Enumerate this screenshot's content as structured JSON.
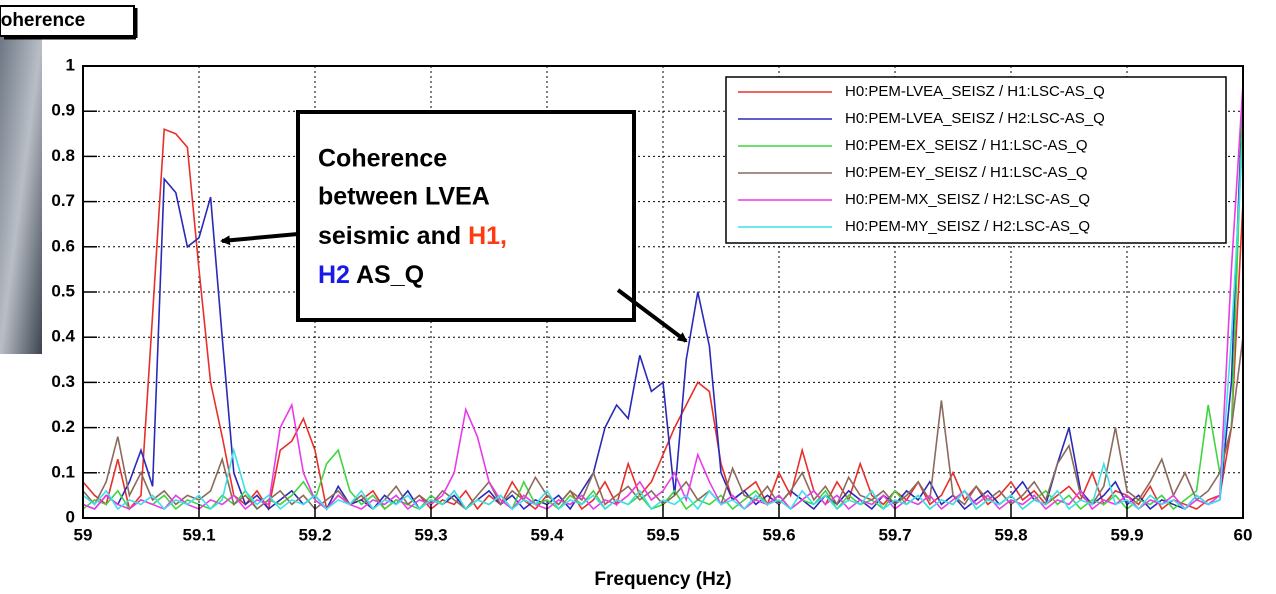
{
  "chart_data": {
    "type": "line",
    "header_box": "Coherence",
    "xlabel": "Frequency (Hz)",
    "annotation": {
      "line1": "Coherence",
      "line2": "between LVEA",
      "line3": "seismic and ",
      "line3_h1": "H1,",
      "line4_h2": "H2",
      "line4": " AS_Q"
    },
    "xlim": [
      59,
      60
    ],
    "ylim": [
      0,
      1
    ],
    "xticks": [
      59,
      59.1,
      59.2,
      59.3,
      59.4,
      59.5,
      59.6,
      59.7,
      59.8,
      59.9,
      60
    ],
    "yticks": [
      0,
      0.1,
      0.2,
      0.3,
      0.4,
      0.5,
      0.6,
      0.7,
      0.8,
      0.9,
      1
    ],
    "grid": true,
    "legend": "upper right",
    "x": [
      59,
      59.01,
      59.02,
      59.03,
      59.04,
      59.05,
      59.06,
      59.07,
      59.08,
      59.09,
      59.1,
      59.11,
      59.12,
      59.13,
      59.14,
      59.15,
      59.16,
      59.17,
      59.18,
      59.19,
      59.2,
      59.21,
      59.22,
      59.23,
      59.24,
      59.25,
      59.26,
      59.27,
      59.28,
      59.29,
      59.3,
      59.31,
      59.32,
      59.33,
      59.34,
      59.35,
      59.36,
      59.37,
      59.38,
      59.39,
      59.4,
      59.41,
      59.42,
      59.43,
      59.44,
      59.45,
      59.46,
      59.47,
      59.48,
      59.49,
      59.5,
      59.51,
      59.52,
      59.53,
      59.54,
      59.55,
      59.56,
      59.57,
      59.58,
      59.59,
      59.6,
      59.61,
      59.62,
      59.63,
      59.64,
      59.65,
      59.66,
      59.67,
      59.68,
      59.69,
      59.7,
      59.71,
      59.72,
      59.73,
      59.74,
      59.75,
      59.76,
      59.77,
      59.78,
      59.79,
      59.8,
      59.81,
      59.82,
      59.83,
      59.84,
      59.85,
      59.86,
      59.87,
      59.88,
      59.89,
      59.9,
      59.91,
      59.92,
      59.93,
      59.94,
      59.95,
      59.96,
      59.97,
      59.98,
      59.99,
      60
    ],
    "series": [
      {
        "name": "H0:PEM-LVEA_SEISZ / H1:LSC-AS_Q",
        "color": "#e8302a",
        "values": [
          0.08,
          0.05,
          0.03,
          0.13,
          0.02,
          0.05,
          0.45,
          0.86,
          0.85,
          0.82,
          0.55,
          0.3,
          0.18,
          0.05,
          0.03,
          0.06,
          0.02,
          0.15,
          0.17,
          0.22,
          0.15,
          0.02,
          0.05,
          0.03,
          0.04,
          0.06,
          0.02,
          0.04,
          0.03,
          0.05,
          0.02,
          0.04,
          0.03,
          0.06,
          0.02,
          0.05,
          0.03,
          0.08,
          0.04,
          0.02,
          0.05,
          0.03,
          0.06,
          0.02,
          0.04,
          0.08,
          0.03,
          0.12,
          0.05,
          0.08,
          0.14,
          0.2,
          0.25,
          0.3,
          0.28,
          0.12,
          0.04,
          0.06,
          0.08,
          0.03,
          0.1,
          0.05,
          0.15,
          0.06,
          0.03,
          0.08,
          0.04,
          0.12,
          0.05,
          0.03,
          0.06,
          0.04,
          0.08,
          0.03,
          0.05,
          0.1,
          0.04,
          0.07,
          0.03,
          0.05,
          0.08,
          0.04,
          0.06,
          0.03,
          0.05,
          0.07,
          0.04,
          0.1,
          0.03,
          0.06,
          0.05,
          0.03,
          0.07,
          0.02,
          0.04,
          0.03,
          0.02,
          0.04,
          0.05,
          0.2,
          0.7
        ]
      },
      {
        "name": "H0:PEM-LVEA_SEISZ / H2:LSC-AS_Q",
        "color": "#2a2ab8",
        "values": [
          0.03,
          0.02,
          0.05,
          0.03,
          0.08,
          0.15,
          0.07,
          0.75,
          0.72,
          0.6,
          0.62,
          0.71,
          0.4,
          0.1,
          0.03,
          0.05,
          0.02,
          0.04,
          0.06,
          0.03,
          0.05,
          0.02,
          0.07,
          0.03,
          0.04,
          0.02,
          0.05,
          0.03,
          0.06,
          0.02,
          0.04,
          0.03,
          0.05,
          0.02,
          0.04,
          0.06,
          0.03,
          0.05,
          0.02,
          0.04,
          0.03,
          0.05,
          0.02,
          0.06,
          0.1,
          0.2,
          0.25,
          0.22,
          0.36,
          0.28,
          0.3,
          0.05,
          0.35,
          0.5,
          0.38,
          0.1,
          0.04,
          0.06,
          0.03,
          0.05,
          0.03,
          0.06,
          0.04,
          0.02,
          0.05,
          0.03,
          0.06,
          0.04,
          0.02,
          0.05,
          0.03,
          0.06,
          0.04,
          0.08,
          0.03,
          0.05,
          0.02,
          0.04,
          0.06,
          0.03,
          0.05,
          0.08,
          0.04,
          0.03,
          0.12,
          0.2,
          0.06,
          0.03,
          0.05,
          0.08,
          0.03,
          0.05,
          0.02,
          0.04,
          0.03,
          0.02,
          0.05,
          0.03,
          0.04,
          0.3,
          0.95
        ]
      },
      {
        "name": "H0:PEM-EX_SEISZ / H1:LSC-AS_Q",
        "color": "#3ed63e",
        "values": [
          0.02,
          0.04,
          0.03,
          0.06,
          0.02,
          0.04,
          0.03,
          0.05,
          0.02,
          0.04,
          0.03,
          0.02,
          0.05,
          0.03,
          0.06,
          0.02,
          0.04,
          0.03,
          0.05,
          0.08,
          0.04,
          0.12,
          0.15,
          0.06,
          0.03,
          0.05,
          0.02,
          0.04,
          0.03,
          0.02,
          0.05,
          0.03,
          0.06,
          0.02,
          0.04,
          0.03,
          0.05,
          0.02,
          0.08,
          0.03,
          0.04,
          0.02,
          0.05,
          0.03,
          0.06,
          0.02,
          0.04,
          0.03,
          0.05,
          0.02,
          0.03,
          0.06,
          0.02,
          0.04,
          0.03,
          0.05,
          0.02,
          0.04,
          0.06,
          0.03,
          0.05,
          0.02,
          0.04,
          0.03,
          0.06,
          0.02,
          0.05,
          0.03,
          0.04,
          0.02,
          0.06,
          0.03,
          0.05,
          0.02,
          0.04,
          0.03,
          0.06,
          0.02,
          0.04,
          0.03,
          0.05,
          0.02,
          0.04,
          0.06,
          0.03,
          0.05,
          0.02,
          0.04,
          0.03,
          0.05,
          0.02,
          0.04,
          0.03,
          0.05,
          0.02,
          0.04,
          0.06,
          0.25,
          0.1,
          0.2,
          0.93
        ]
      },
      {
        "name": "H0:PEM-EY_SEISZ / H1:LSC-AS_Q",
        "color": "#8c6a5c",
        "values": [
          0.06,
          0.03,
          0.08,
          0.18,
          0.05,
          0.1,
          0.04,
          0.06,
          0.03,
          0.05,
          0.04,
          0.06,
          0.13,
          0.03,
          0.05,
          0.02,
          0.04,
          0.06,
          0.03,
          0.05,
          0.02,
          0.04,
          0.06,
          0.03,
          0.05,
          0.02,
          0.04,
          0.07,
          0.03,
          0.05,
          0.03,
          0.06,
          0.04,
          0.02,
          0.05,
          0.08,
          0.03,
          0.06,
          0.04,
          0.09,
          0.05,
          0.03,
          0.06,
          0.04,
          0.1,
          0.03,
          0.05,
          0.07,
          0.04,
          0.06,
          0.03,
          0.05,
          0.08,
          0.04,
          0.06,
          0.03,
          0.11,
          0.05,
          0.04,
          0.07,
          0.03,
          0.06,
          0.1,
          0.04,
          0.07,
          0.03,
          0.09,
          0.05,
          0.04,
          0.06,
          0.03,
          0.05,
          0.08,
          0.04,
          0.26,
          0.05,
          0.03,
          0.07,
          0.04,
          0.06,
          0.03,
          0.05,
          0.08,
          0.04,
          0.12,
          0.16,
          0.05,
          0.03,
          0.07,
          0.2,
          0.06,
          0.04,
          0.08,
          0.13,
          0.05,
          0.1,
          0.04,
          0.06,
          0.1,
          0.2,
          0.4
        ]
      },
      {
        "name": "H0:PEM-MX_SEISZ / H2:LSC-AS_Q",
        "color": "#e83ce8",
        "values": [
          0.03,
          0.02,
          0.05,
          0.03,
          0.02,
          0.04,
          0.03,
          0.02,
          0.05,
          0.03,
          0.02,
          0.04,
          0.03,
          0.05,
          0.02,
          0.04,
          0.03,
          0.2,
          0.25,
          0.1,
          0.04,
          0.02,
          0.05,
          0.03,
          0.02,
          0.04,
          0.03,
          0.05,
          0.02,
          0.04,
          0.03,
          0.05,
          0.1,
          0.24,
          0.18,
          0.08,
          0.04,
          0.02,
          0.05,
          0.03,
          0.02,
          0.04,
          0.03,
          0.05,
          0.02,
          0.04,
          0.03,
          0.05,
          0.08,
          0.04,
          0.06,
          0.1,
          0.04,
          0.14,
          0.08,
          0.03,
          0.05,
          0.02,
          0.04,
          0.03,
          0.05,
          0.02,
          0.04,
          0.06,
          0.03,
          0.05,
          0.02,
          0.04,
          0.03,
          0.05,
          0.02,
          0.04,
          0.03,
          0.05,
          0.02,
          0.04,
          0.06,
          0.03,
          0.05,
          0.02,
          0.04,
          0.03,
          0.05,
          0.02,
          0.04,
          0.03,
          0.06,
          0.02,
          0.04,
          0.03,
          0.05,
          0.02,
          0.04,
          0.03,
          0.05,
          0.02,
          0.04,
          0.03,
          0.05,
          0.55,
          0.96
        ]
      },
      {
        "name": "H0:PEM-MY_SEISZ / H2:LSC-AS_Q",
        "color": "#3ee0e8",
        "values": [
          0.05,
          0.03,
          0.06,
          0.02,
          0.04,
          0.03,
          0.05,
          0.02,
          0.04,
          0.03,
          0.05,
          0.02,
          0.04,
          0.15,
          0.06,
          0.03,
          0.05,
          0.02,
          0.04,
          0.03,
          0.05,
          0.02,
          0.04,
          0.03,
          0.06,
          0.02,
          0.04,
          0.03,
          0.05,
          0.02,
          0.04,
          0.03,
          0.06,
          0.02,
          0.04,
          0.03,
          0.05,
          0.02,
          0.04,
          0.03,
          0.06,
          0.02,
          0.04,
          0.03,
          0.05,
          0.02,
          0.04,
          0.03,
          0.06,
          0.02,
          0.04,
          0.03,
          0.05,
          0.02,
          0.06,
          0.03,
          0.04,
          0.02,
          0.05,
          0.03,
          0.04,
          0.02,
          0.06,
          0.03,
          0.05,
          0.02,
          0.04,
          0.03,
          0.06,
          0.02,
          0.04,
          0.03,
          0.05,
          0.02,
          0.04,
          0.03,
          0.06,
          0.02,
          0.04,
          0.03,
          0.05,
          0.02,
          0.04,
          0.03,
          0.06,
          0.02,
          0.04,
          0.03,
          0.12,
          0.03,
          0.04,
          0.02,
          0.05,
          0.03,
          0.04,
          0.02,
          0.05,
          0.03,
          0.04,
          0.4,
          0.85
        ]
      }
    ]
  }
}
